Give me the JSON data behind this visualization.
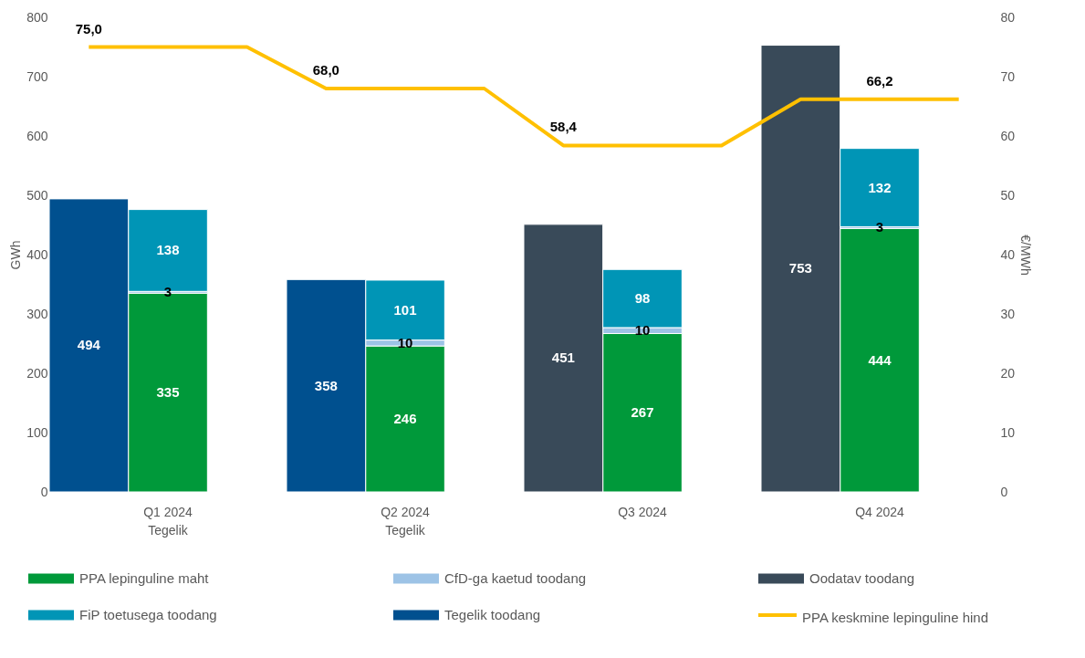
{
  "chart_data": {
    "type": "bar",
    "stacked": true,
    "data_labels": true,
    "legend": "bottom",
    "grid": false,
    "categories": [
      null,
      "Q1 2024\nTegelik",
      null,
      null,
      "Q2 2024\nTegelik",
      null,
      null,
      "Q3 2024",
      null,
      null,
      "Q4 2024",
      null
    ],
    "ylabel": "GWh",
    "y2label": "€/MWh",
    "ylim": [
      0,
      800
    ],
    "yticks": [
      0,
      100,
      200,
      300,
      400,
      500,
      600,
      700,
      800
    ],
    "y2lim": [
      0,
      80
    ],
    "y2ticks": [
      0,
      10,
      20,
      30,
      40,
      50,
      60,
      70,
      80
    ],
    "series": [
      {
        "name": "PPA lepinguline maht",
        "color": "#00993a",
        "values": [
          null,
          335,
          null,
          null,
          246,
          null,
          null,
          267,
          null,
          null,
          444,
          null
        ]
      },
      {
        "name": "CfD-ga kaetud toodang",
        "color": "#9dc3e6",
        "values": [
          null,
          3,
          null,
          null,
          10,
          null,
          null,
          10,
          null,
          null,
          3,
          null
        ]
      },
      {
        "name": "Oodatav toodang",
        "color": "#394a59",
        "values": [
          null,
          null,
          null,
          null,
          null,
          null,
          451,
          null,
          null,
          753,
          null,
          null
        ]
      },
      {
        "name": "FiP toetusega toodang",
        "color": "#0095b6",
        "values": [
          null,
          138,
          null,
          null,
          101,
          null,
          null,
          98,
          null,
          null,
          132,
          null
        ]
      },
      {
        "name": "Tegelik toodang",
        "color": "#00508f",
        "values": [
          494,
          null,
          null,
          358,
          null,
          null,
          null,
          null,
          null,
          null,
          null,
          null
        ]
      },
      {
        "name": "PPA keskmine lepinguline hind",
        "color": "#ffc000",
        "type": "line",
        "axis": "y2",
        "values": [
          75.0,
          75.0,
          75.0,
          68.0,
          68.0,
          68.0,
          58.4,
          58.4,
          58.4,
          66.2,
          66.2,
          66.2
        ],
        "value_labels": [
          "75,0",
          null,
          null,
          "68,0",
          null,
          null,
          "58,4",
          null,
          null,
          null,
          "66,2",
          null
        ]
      }
    ]
  }
}
